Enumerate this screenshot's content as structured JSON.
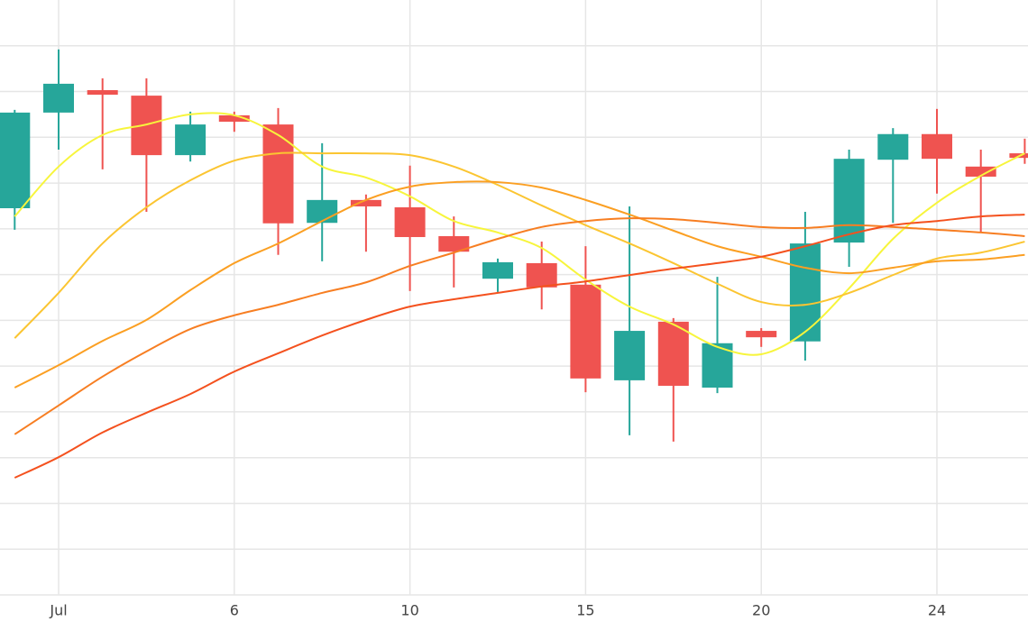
{
  "chart_data": {
    "type": "candlestick",
    "categories": [
      null,
      "Jul",
      null,
      null,
      null,
      "6",
      null,
      null,
      null,
      "10",
      null,
      null,
      null,
      "15",
      null,
      null,
      null,
      "20",
      null,
      null,
      null,
      "24",
      null,
      null
    ],
    "open": [
      84.5,
      105.4,
      110.3,
      109.1,
      96.1,
      104.8,
      102.8,
      81.3,
      86.3,
      84.7,
      78.4,
      69.1,
      72.5,
      67.8,
      46.9,
      59.7,
      45.3,
      57.7,
      55.4,
      77.0,
      95.1,
      100.7,
      93.6,
      96.5
    ],
    "high": [
      106.0,
      119.2,
      112.9,
      112.9,
      105.6,
      105.6,
      106.4,
      98.7,
      87.5,
      93.8,
      82.7,
      73.5,
      77.2,
      76.2,
      84.9,
      60.5,
      69.5,
      58.3,
      83.7,
      97.3,
      102.0,
      106.2,
      97.3,
      99.7
    ],
    "low": [
      79.8,
      97.3,
      93.0,
      83.7,
      94.7,
      101.2,
      74.3,
      72.9,
      75.0,
      66.4,
      67.2,
      66.2,
      62.4,
      44.3,
      34.9,
      33.5,
      44.1,
      54.2,
      51.2,
      71.7,
      81.3,
      87.7,
      79.2,
      94.2
    ],
    "close": [
      105.4,
      111.7,
      109.3,
      96.1,
      102.8,
      103.4,
      81.2,
      86.3,
      84.9,
      78.2,
      75.0,
      72.7,
      67.2,
      47.3,
      57.7,
      45.7,
      55.0,
      56.3,
      76.8,
      95.3,
      100.7,
      95.3,
      91.4,
      95.5
    ],
    "increasing_color": "#26a69a",
    "decreasing_color": "#ef5350",
    "lines": [
      {
        "color": "#f7f53c",
        "values": [
          82.7,
          93.6,
          100.5,
          102.8,
          105.0,
          104.8,
          100.5,
          93.6,
          91.2,
          87.1,
          81.7,
          79.2,
          75.8,
          68.9,
          63.0,
          59.1,
          54.2,
          52.6,
          57.5,
          67.0,
          77.8,
          85.7,
          91.6,
          96.5
        ]
      },
      {
        "color": "#fbc531",
        "values": [
          56.1,
          66.0,
          76.8,
          84.7,
          90.6,
          94.9,
          96.5,
          96.5,
          96.5,
          96.1,
          93.6,
          89.6,
          85.1,
          80.8,
          76.8,
          72.5,
          68.0,
          64.0,
          63.4,
          66.0,
          69.9,
          73.5,
          74.8,
          77.2
        ]
      },
      {
        "color": "#fb9f22",
        "values": [
          45.3,
          50.2,
          55.5,
          60.1,
          66.6,
          72.5,
          76.8,
          81.7,
          86.3,
          89.2,
          90.2,
          90.2,
          89.0,
          86.3,
          83.1,
          79.6,
          76.2,
          73.9,
          71.5,
          70.3,
          71.5,
          72.9,
          73.3,
          74.3
        ]
      },
      {
        "color": "#f77e22",
        "values": [
          35.1,
          41.4,
          47.7,
          53.2,
          58.1,
          61.1,
          63.4,
          66.0,
          68.3,
          71.9,
          74.8,
          77.8,
          80.4,
          81.7,
          82.3,
          82.1,
          81.3,
          80.4,
          80.2,
          80.8,
          80.4,
          79.8,
          79.2,
          78.4
        ]
      },
      {
        "color": "#f4511e",
        "values": [
          25.6,
          30.1,
          35.5,
          39.8,
          43.9,
          48.8,
          52.8,
          56.7,
          60.1,
          63.0,
          64.6,
          66.0,
          67.4,
          68.5,
          69.9,
          71.3,
          72.5,
          73.9,
          76.2,
          78.8,
          80.8,
          81.7,
          82.7,
          83.1
        ]
      }
    ],
    "ylim": [
      0,
      130
    ],
    "yticks": [
      0,
      10,
      20,
      30,
      40,
      50,
      60,
      70,
      80,
      90,
      100,
      110,
      120
    ],
    "grid": true
  }
}
